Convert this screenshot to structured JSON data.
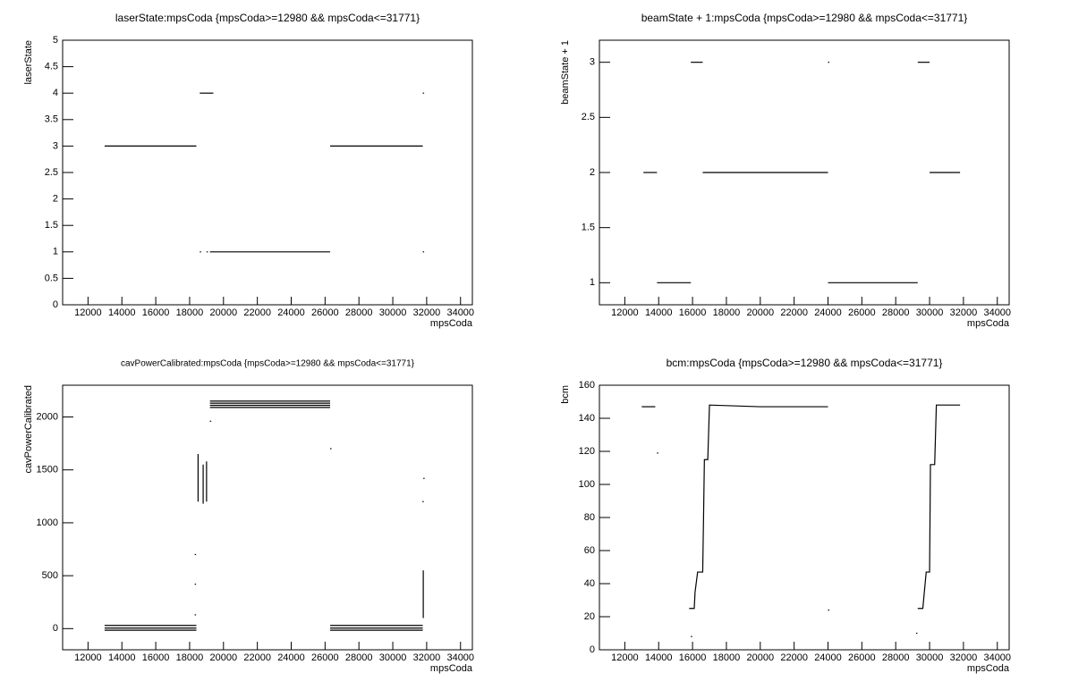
{
  "chart_data": [
    {
      "type": "line",
      "title": "laserState:mpsCoda {mpsCoda>=12980 && mpsCoda<=31771}",
      "x_label": "mpsCoda",
      "y_label": "laserState",
      "color": "#000000",
      "xlim": [
        10500,
        34700
      ],
      "xticks": [
        12000,
        14000,
        16000,
        18000,
        20000,
        22000,
        24000,
        26000,
        28000,
        30000,
        32000,
        34000
      ],
      "ylim": [
        0,
        5
      ],
      "yticks": [
        0,
        0.5,
        1,
        1.5,
        2,
        2.5,
        3,
        3.5,
        4,
        4.5,
        5
      ],
      "x": [
        12980,
        18400,
        null,
        18600,
        19400,
        null,
        18600,
        null,
        19000,
        null,
        19200,
        26300,
        null,
        26300,
        31771,
        null,
        31771,
        null,
        31771
      ],
      "values": [
        3,
        3,
        null,
        4,
        4,
        null,
        1,
        null,
        1,
        null,
        1,
        1,
        null,
        3,
        3,
        null,
        4,
        null,
        1
      ]
    },
    {
      "type": "line",
      "title": "beamState + 1:mpsCoda {mpsCoda>=12980 && mpsCoda<=31771}",
      "x_label": "mpsCoda",
      "y_label": "beamState + 1",
      "color": "#000000",
      "xlim": [
        10500,
        34700
      ],
      "xticks": [
        12000,
        14000,
        16000,
        18000,
        20000,
        22000,
        24000,
        26000,
        28000,
        30000,
        32000,
        34000
      ],
      "ylim": [
        0.8,
        3.2
      ],
      "yticks": [
        1,
        1.5,
        2,
        2.5,
        3
      ],
      "x": [
        13100,
        13900,
        null,
        13900,
        15900,
        null,
        15900,
        16600,
        null,
        16600,
        24000,
        null,
        24000,
        null,
        24000,
        29300,
        null,
        29300,
        30000,
        null,
        30000,
        31800
      ],
      "values": [
        2,
        2,
        null,
        1,
        1,
        null,
        3,
        3,
        null,
        2,
        2,
        null,
        3,
        null,
        1,
        1,
        null,
        3,
        3,
        null,
        2,
        2
      ]
    },
    {
      "type": "line",
      "title": "cavPowerCalibrated:mpsCoda {mpsCoda>=12980 && mpsCoda<=31771}",
      "x_label": "mpsCoda",
      "y_label": "cavPowerCalibrated",
      "color": "#000000",
      "xlim": [
        10500,
        34700
      ],
      "xticks": [
        12000,
        14000,
        16000,
        18000,
        20000,
        22000,
        24000,
        26000,
        28000,
        30000,
        32000,
        34000
      ],
      "ylim": [
        -200,
        2300
      ],
      "yticks": [
        0,
        500,
        1000,
        1500,
        2000
      ],
      "x": [
        12980,
        18400,
        null,
        12980,
        18400,
        null,
        12980,
        18400,
        null,
        26300,
        31771,
        null,
        26300,
        31771,
        null,
        26300,
        31771,
        null,
        19200,
        26300,
        null,
        19200,
        26300,
        null,
        19200,
        26300,
        null,
        19200,
        26300,
        null,
        18500,
        18500,
        18500,
        18500,
        18500,
        18500,
        null,
        18800,
        18800,
        18800,
        18800,
        18800,
        null,
        19000,
        19000,
        19000,
        19000,
        19000,
        null,
        18300,
        null,
        18300,
        null,
        18300,
        null,
        19200,
        null,
        26300,
        null,
        31800,
        null,
        31750,
        null,
        31800,
        31800,
        31800,
        31800,
        31800,
        31800
      ],
      "values": [
        30,
        30,
        null,
        5,
        5,
        null,
        -15,
        -15,
        null,
        30,
        30,
        null,
        5,
        5,
        null,
        -15,
        -15,
        null,
        2150,
        2150,
        null,
        2130,
        2130,
        null,
        2110,
        2110,
        null,
        2090,
        2090,
        null,
        1200,
        1300,
        1400,
        1500,
        1600,
        1650,
        null,
        1180,
        1250,
        1350,
        1450,
        1550,
        null,
        1200,
        1300,
        1400,
        1500,
        1580,
        null,
        700,
        null,
        420,
        null,
        130,
        null,
        1960,
        null,
        1700,
        null,
        1420,
        null,
        1200,
        null,
        100,
        200,
        300,
        390,
        470,
        550
      ]
    },
    {
      "type": "line",
      "title": "bcm:mpsCoda {mpsCoda>=12980 && mpsCoda<=31771}",
      "x_label": "mpsCoda",
      "y_label": "bcm",
      "color": "#000000",
      "xlim": [
        10500,
        34700
      ],
      "xticks": [
        12000,
        14000,
        16000,
        18000,
        20000,
        22000,
        24000,
        26000,
        28000,
        30000,
        32000,
        34000
      ],
      "ylim": [
        0,
        160
      ],
      "yticks": [
        0,
        20,
        40,
        60,
        80,
        100,
        120,
        140,
        160
      ],
      "x": [
        13000,
        13800,
        null,
        13900,
        null,
        15900,
        null,
        15800,
        16100,
        16150,
        16300,
        16600,
        16650,
        16700,
        16900,
        17000,
        20000,
        24000,
        null,
        24000,
        null,
        29200,
        null,
        29300,
        29600,
        29800,
        30000,
        30050,
        30300,
        30400,
        31800
      ],
      "values": [
        147,
        147,
        null,
        119,
        null,
        8,
        null,
        25,
        25,
        35,
        47,
        47,
        80,
        115,
        115,
        148,
        147,
        147,
        null,
        24,
        null,
        10,
        null,
        25,
        25,
        47,
        47,
        112,
        112,
        148,
        148
      ]
    }
  ]
}
